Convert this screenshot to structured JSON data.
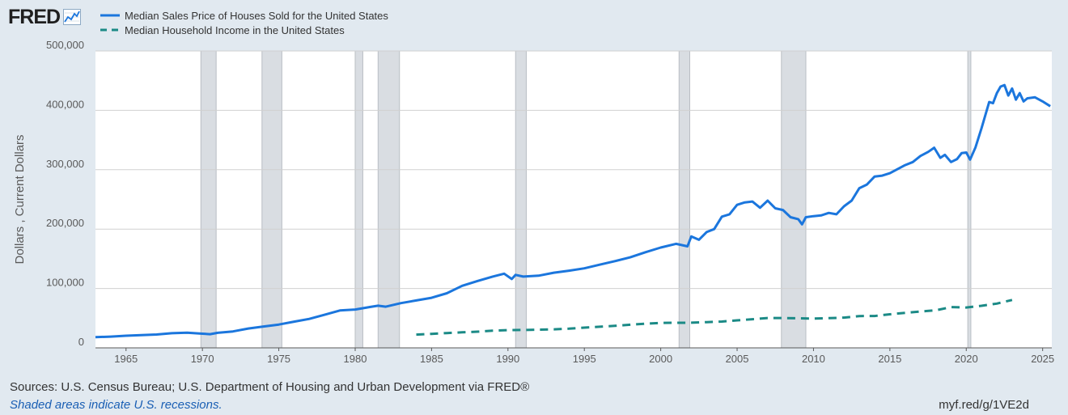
{
  "header": {
    "logo_text": "FRED",
    "logo_icon": "line-chart-icon"
  },
  "colors": {
    "background": "#e1e9f0",
    "plot_bg": "#ffffff",
    "series1": "#1b76dd",
    "series2": "#1b8a86",
    "recession": "#d9dde2",
    "grid": "#d0d0d0"
  },
  "footer": {
    "sources": "Sources: U.S. Census Bureau; U.S. Department of Housing and Urban Development via FRED®",
    "note": "Shaded areas indicate U.S. recessions.",
    "url": "myf.red/g/1VE2d"
  },
  "chart_data": {
    "type": "line",
    "ylabel": "Dollars , Current Dollars",
    "xlim": [
      1963,
      2025.6
    ],
    "ylim": [
      0,
      500000
    ],
    "y_ticks": [
      0,
      100000,
      200000,
      300000,
      400000,
      500000
    ],
    "y_tick_labels": [
      "0",
      "100,000",
      "200,000",
      "300,000",
      "400,000",
      "500,000"
    ],
    "x_ticks": [
      1965,
      1970,
      1975,
      1980,
      1985,
      1990,
      1995,
      2000,
      2005,
      2010,
      2015,
      2020,
      2025
    ],
    "x_tick_labels": [
      "1965",
      "1970",
      "1975",
      "1980",
      "1985",
      "1990",
      "1995",
      "2000",
      "2005",
      "2010",
      "2015",
      "2020",
      "2025"
    ],
    "grid": true,
    "legend_position": "top-left",
    "recessions": [
      [
        1969.9,
        1970.9
      ],
      [
        1973.9,
        1975.2
      ],
      [
        1980.0,
        1980.5
      ],
      [
        1981.5,
        1982.9
      ],
      [
        1990.5,
        1991.2
      ],
      [
        2001.2,
        2001.9
      ],
      [
        2007.9,
        2009.5
      ],
      [
        2020.1,
        2020.3
      ]
    ],
    "series": [
      {
        "name": "Median Sales Price of Houses Sold for the United States",
        "style": "solid",
        "x": [
          1963.0,
          1964.0,
          1965.0,
          1966.0,
          1967.0,
          1968.0,
          1969.0,
          1970.0,
          1970.5,
          1971.0,
          1972.0,
          1973.0,
          1974.0,
          1975.0,
          1976.0,
          1977.0,
          1978.0,
          1979.0,
          1980.0,
          1981.0,
          1981.5,
          1982.0,
          1983.0,
          1984.0,
          1985.0,
          1986.0,
          1987.0,
          1988.0,
          1989.0,
          1989.75,
          1990.25,
          1990.5,
          1991.0,
          1992.0,
          1993.0,
          1994.0,
          1995.0,
          1996.0,
          1997.0,
          1998.0,
          1999.0,
          2000.0,
          2001.0,
          2001.75,
          2002.0,
          2002.5,
          2003.0,
          2003.5,
          2004.0,
          2004.5,
          2005.0,
          2005.5,
          2006.0,
          2006.5,
          2007.0,
          2007.5,
          2008.0,
          2008.5,
          2009.0,
          2009.25,
          2009.5,
          2010.0,
          2010.5,
          2011.0,
          2011.5,
          2012.0,
          2012.5,
          2013.0,
          2013.5,
          2014.0,
          2014.5,
          2015.0,
          2015.5,
          2016.0,
          2016.5,
          2017.0,
          2017.5,
          2017.9,
          2018.3,
          2018.6,
          2019.0,
          2019.4,
          2019.7,
          2020.0,
          2020.25,
          2020.6,
          2021.0,
          2021.5,
          2021.75,
          2022.0,
          2022.25,
          2022.5,
          2022.75,
          2023.0,
          2023.25,
          2023.5,
          2023.75,
          2024.0,
          2024.5,
          2025.0,
          2025.5
        ],
        "values": [
          18000,
          19000,
          20500,
          21500,
          22500,
          24700,
          25600,
          23900,
          23000,
          25300,
          27600,
          32500,
          35900,
          39300,
          44200,
          48800,
          55700,
          62900,
          64600,
          68900,
          71000,
          69300,
          75300,
          79900,
          84300,
          92000,
          104500,
          112500,
          120000,
          125000,
          116000,
          122900,
          120000,
          121500,
          126500,
          130000,
          133900,
          140000,
          146000,
          152500,
          161000,
          169000,
          175200,
          171000,
          187600,
          182000,
          195000,
          200000,
          221000,
          225000,
          240900,
          245000,
          246500,
          236000,
          247900,
          235000,
          232100,
          220000,
          216700,
          208000,
          220000,
          221800,
          223000,
          227200,
          225000,
          238400,
          248000,
          268900,
          275000,
          288500,
          290000,
          294200,
          301000,
          307800,
          313000,
          323100,
          330000,
          337000,
          320000,
          325000,
          313000,
          318000,
          328000,
          329000,
          317000,
          337500,
          369800,
          414000,
          412000,
          428700,
          440000,
          442500,
          425000,
          436800,
          418000,
          429000,
          415000,
          420300,
          422000,
          415000,
          407000
        ]
      },
      {
        "name": "Median Household Income in the United States",
        "style": "dashed",
        "x": [
          1984,
          1985,
          1986,
          1987,
          1988,
          1989,
          1990,
          1991,
          1992,
          1993,
          1994,
          1995,
          1996,
          1997,
          1998,
          1999,
          2000,
          2001,
          2002,
          2003,
          2004,
          2005,
          2006,
          2007,
          2008,
          2009,
          2010,
          2011,
          2012,
          2013,
          2014,
          2015,
          2016,
          2017,
          2018,
          2019,
          2020,
          2021,
          2022,
          2023
        ],
        "values": [
          22400,
          23600,
          24900,
          26100,
          27200,
          28900,
          29900,
          30100,
          30600,
          31200,
          32300,
          34100,
          35500,
          37000,
          38900,
          40700,
          41990,
          42230,
          42410,
          43320,
          44330,
          46330,
          48200,
          50230,
          50300,
          49780,
          49280,
          50050,
          51020,
          53590,
          53660,
          56520,
          59040,
          61140,
          63180,
          68700,
          68010,
          70780,
          74580,
          80610
        ]
      }
    ]
  }
}
